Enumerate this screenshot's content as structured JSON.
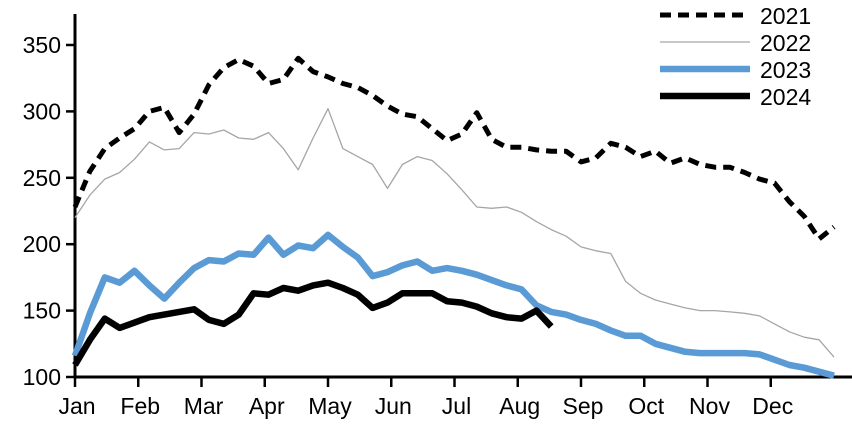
{
  "chart_data": {
    "type": "line",
    "title": "",
    "x_axis": {
      "tick_labels": [
        "Jan",
        "Feb",
        "Mar",
        "Apr",
        "May",
        "Jun",
        "Jul",
        "Aug",
        "Sep",
        "Oct",
        "Nov",
        "Dec"
      ],
      "note": "weekly data points across one calendar year"
    },
    "y_axis": {
      "ticks": [
        100,
        150,
        200,
        250,
        300,
        350
      ],
      "min": 100,
      "max": 350,
      "grid": false
    },
    "legend": {
      "position": "top-right",
      "entries": [
        "2021",
        "2022",
        "2023",
        "2024"
      ]
    },
    "colors": {
      "blue": "#5B9BD5",
      "gray": "#A6A6A6",
      "black": "#000000"
    },
    "series": [
      {
        "name": "2021",
        "style": "dashed",
        "color": "#000000",
        "width": 5,
        "values": [
          228,
          255,
          272,
          280,
          287,
          300,
          303,
          284,
          298,
          320,
          333,
          339,
          334,
          321,
          324,
          340,
          330,
          326,
          321,
          318,
          312,
          304,
          298,
          296,
          287,
          278,
          283,
          299,
          279,
          273,
          273,
          271,
          270,
          270,
          262,
          265,
          276,
          273,
          266,
          270,
          261,
          265,
          260,
          258,
          258,
          254,
          249,
          246,
          232,
          221,
          204,
          213
        ]
      },
      {
        "name": "2022",
        "style": "solid",
        "color": "#A6A6A6",
        "width": 1.3,
        "values": [
          220,
          237,
          249,
          254,
          264,
          277,
          271,
          272,
          284,
          283,
          286,
          280,
          279,
          284,
          272,
          256,
          280,
          302,
          272,
          266,
          260,
          242,
          260,
          266,
          263,
          253,
          241,
          228,
          227,
          228,
          224,
          217,
          211,
          206,
          198,
          195,
          193,
          172,
          163,
          158,
          155,
          152,
          150,
          150,
          149,
          148,
          146,
          140,
          134,
          130,
          128,
          115
        ]
      },
      {
        "name": "2023",
        "style": "solid",
        "color": "#5B9BD5",
        "width": 6.5,
        "values": [
          116,
          148,
          175,
          171,
          180,
          169,
          159,
          171,
          182,
          188,
          187,
          193,
          192,
          205,
          192,
          199,
          197,
          207,
          198,
          190,
          176,
          179,
          184,
          187,
          180,
          182,
          180,
          177,
          173,
          169,
          166,
          154,
          149,
          147,
          143,
          140,
          135,
          131,
          131,
          125,
          122,
          119,
          118,
          118,
          118,
          118,
          117,
          113,
          109,
          107,
          104,
          101
        ]
      },
      {
        "name": "2024",
        "style": "solid",
        "color": "#000000",
        "width": 6.5,
        "values": [
          109,
          128,
          144,
          137,
          141,
          145,
          147,
          149,
          151,
          143,
          140,
          147,
          163,
          162,
          167,
          165,
          169,
          171,
          167,
          162,
          152,
          156,
          163,
          163,
          163,
          157,
          156,
          153,
          148,
          145,
          144,
          150,
          138
        ]
      }
    ]
  }
}
